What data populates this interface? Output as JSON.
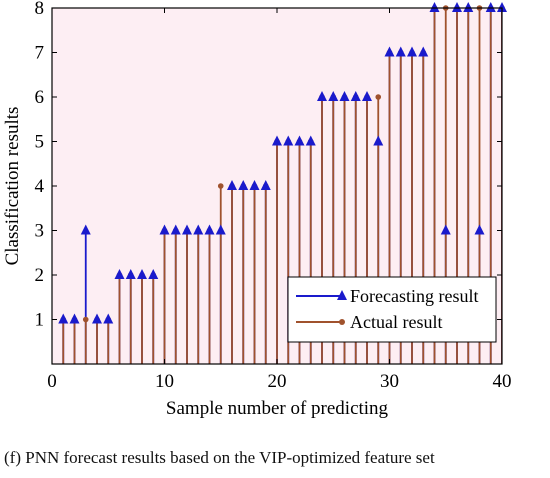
{
  "caption": "(f) PNN forecast results based on the VIP-optimized feature set",
  "chart_data": {
    "type": "stem",
    "xlabel": "Sample number of predicting",
    "ylabel": "Classification results",
    "xlim": [
      0,
      40
    ],
    "ylim": [
      0,
      8
    ],
    "xticks": [
      0,
      10,
      20,
      30,
      40
    ],
    "yticks": [
      1,
      2,
      3,
      4,
      5,
      6,
      7,
      8
    ],
    "grid": false,
    "legend_position": "bottom-right",
    "x": [
      1,
      2,
      3,
      4,
      5,
      6,
      7,
      8,
      9,
      10,
      11,
      12,
      13,
      14,
      15,
      16,
      17,
      18,
      19,
      20,
      21,
      22,
      23,
      24,
      25,
      26,
      27,
      28,
      29,
      30,
      31,
      32,
      33,
      34,
      35,
      36,
      37,
      38,
      39,
      40
    ],
    "series": [
      {
        "name": "Forecasting result",
        "color": "#1a1acc",
        "marker": "triangle",
        "values": [
          1,
          1,
          3,
          1,
          1,
          2,
          2,
          2,
          2,
          3,
          3,
          3,
          3,
          3,
          3,
          4,
          4,
          4,
          4,
          5,
          5,
          5,
          5,
          6,
          6,
          6,
          6,
          6,
          5,
          7,
          7,
          7,
          7,
          8,
          3,
          8,
          8,
          3,
          8,
          8
        ]
      },
      {
        "name": "Actual result",
        "color": "#a0522d",
        "marker": "circle",
        "values": [
          1,
          1,
          1,
          1,
          1,
          2,
          2,
          2,
          2,
          3,
          3,
          3,
          3,
          3,
          4,
          4,
          4,
          4,
          4,
          5,
          5,
          5,
          5,
          6,
          6,
          6,
          6,
          6,
          6,
          7,
          7,
          7,
          7,
          8,
          8,
          8,
          8,
          8,
          8,
          8
        ]
      }
    ]
  }
}
